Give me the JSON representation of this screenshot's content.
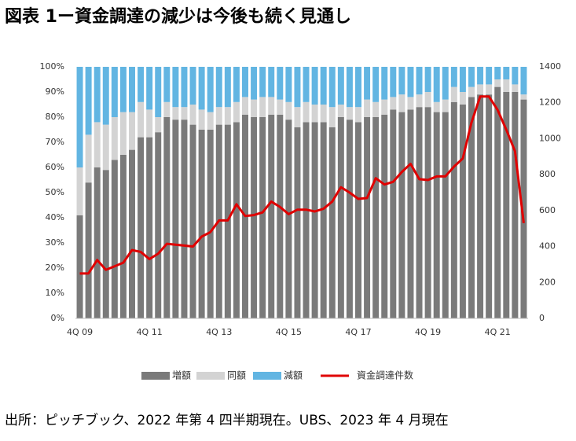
{
  "chart_data": {
    "type": "bar",
    "stacked": true,
    "title": "図表 1ー資金調達の減少は今後も続く見通し",
    "source": "出所：ピッチブック、2022 年第 4 四半期現在。UBS、2023 年 4 月現在",
    "categories": [
      "4Q 09",
      null,
      null,
      null,
      null,
      null,
      null,
      null,
      "4Q 11",
      null,
      null,
      null,
      null,
      null,
      null,
      null,
      "4Q 13",
      null,
      null,
      null,
      null,
      null,
      null,
      null,
      "4Q 15",
      null,
      null,
      null,
      null,
      null,
      null,
      null,
      "4Q 17",
      null,
      null,
      null,
      null,
      null,
      null,
      null,
      "4Q 19",
      null,
      null,
      null,
      null,
      null,
      null,
      null,
      "4Q 21",
      null,
      null,
      null
    ],
    "series": [
      {
        "name": "増額",
        "color": "#7a7a7a",
        "values": [
          41,
          54,
          60,
          59,
          63,
          65,
          67,
          72,
          72,
          74,
          80,
          79,
          79,
          77,
          75,
          75,
          77,
          77,
          78,
          81,
          80,
          80,
          81,
          81,
          79,
          76,
          78,
          78,
          78,
          76,
          80,
          79,
          78,
          80,
          80,
          81,
          83,
          82,
          83,
          84,
          84,
          82,
          82,
          86,
          85,
          88,
          89,
          89,
          92,
          90,
          90,
          87
        ]
      },
      {
        "name": "同額",
        "color": "#d3d3d3",
        "values": [
          19,
          19,
          18,
          18,
          17,
          17,
          15,
          14,
          11,
          6,
          6,
          5,
          5,
          8,
          8,
          7,
          7,
          7,
          8,
          7,
          7,
          8,
          7,
          6,
          7,
          8,
          8,
          7,
          7,
          8,
          5,
          5,
          6,
          7,
          6,
          6,
          5,
          7,
          5,
          5,
          6,
          4,
          5,
          6,
          5,
          4,
          4,
          4,
          3,
          5,
          3,
          2
        ]
      },
      {
        "name": "減額",
        "color": "#62b5e2",
        "values": [
          40,
          27,
          22,
          23,
          20,
          18,
          18,
          14,
          17,
          20,
          14,
          16,
          16,
          15,
          17,
          18,
          16,
          16,
          14,
          12,
          13,
          12,
          12,
          13,
          14,
          16,
          14,
          15,
          15,
          16,
          15,
          16,
          16,
          13,
          14,
          13,
          12,
          11,
          12,
          11,
          10,
          14,
          13,
          8,
          10,
          8,
          7,
          7,
          5,
          5,
          7,
          11
        ]
      },
      {
        "name": "資金調達件数",
        "color": "#e00000",
        "type": "line",
        "axis": "y2",
        "values": [
          250,
          250,
          325,
          270,
          290,
          310,
          380,
          370,
          330,
          360,
          415,
          410,
          405,
          400,
          455,
          480,
          545,
          545,
          635,
          570,
          575,
          590,
          650,
          620,
          580,
          605,
          605,
          595,
          610,
          650,
          730,
          700,
          665,
          670,
          780,
          745,
          760,
          815,
          860,
          775,
          770,
          790,
          790,
          845,
          890,
          1090,
          1235,
          1235,
          1160,
          1050,
          930,
          530
        ]
      }
    ],
    "ylim": [
      0,
      100
    ],
    "yticks": [
      {
        "value": 0,
        "label": "0%"
      },
      {
        "value": 10,
        "label": "10%"
      },
      {
        "value": 20,
        "label": "20%"
      },
      {
        "value": 30,
        "label": "30%"
      },
      {
        "value": 40,
        "label": "40%"
      },
      {
        "value": 50,
        "label": "50%"
      },
      {
        "value": 60,
        "label": "60%"
      },
      {
        "value": 70,
        "label": "70%"
      },
      {
        "value": 80,
        "label": "80%"
      },
      {
        "value": 90,
        "label": "90%"
      },
      {
        "value": 100,
        "label": "100%"
      }
    ],
    "y2lim": [
      0,
      1400
    ],
    "y2ticks": [
      0,
      200,
      400,
      600,
      800,
      1000,
      1200,
      1400
    ],
    "legend": "bottom"
  }
}
